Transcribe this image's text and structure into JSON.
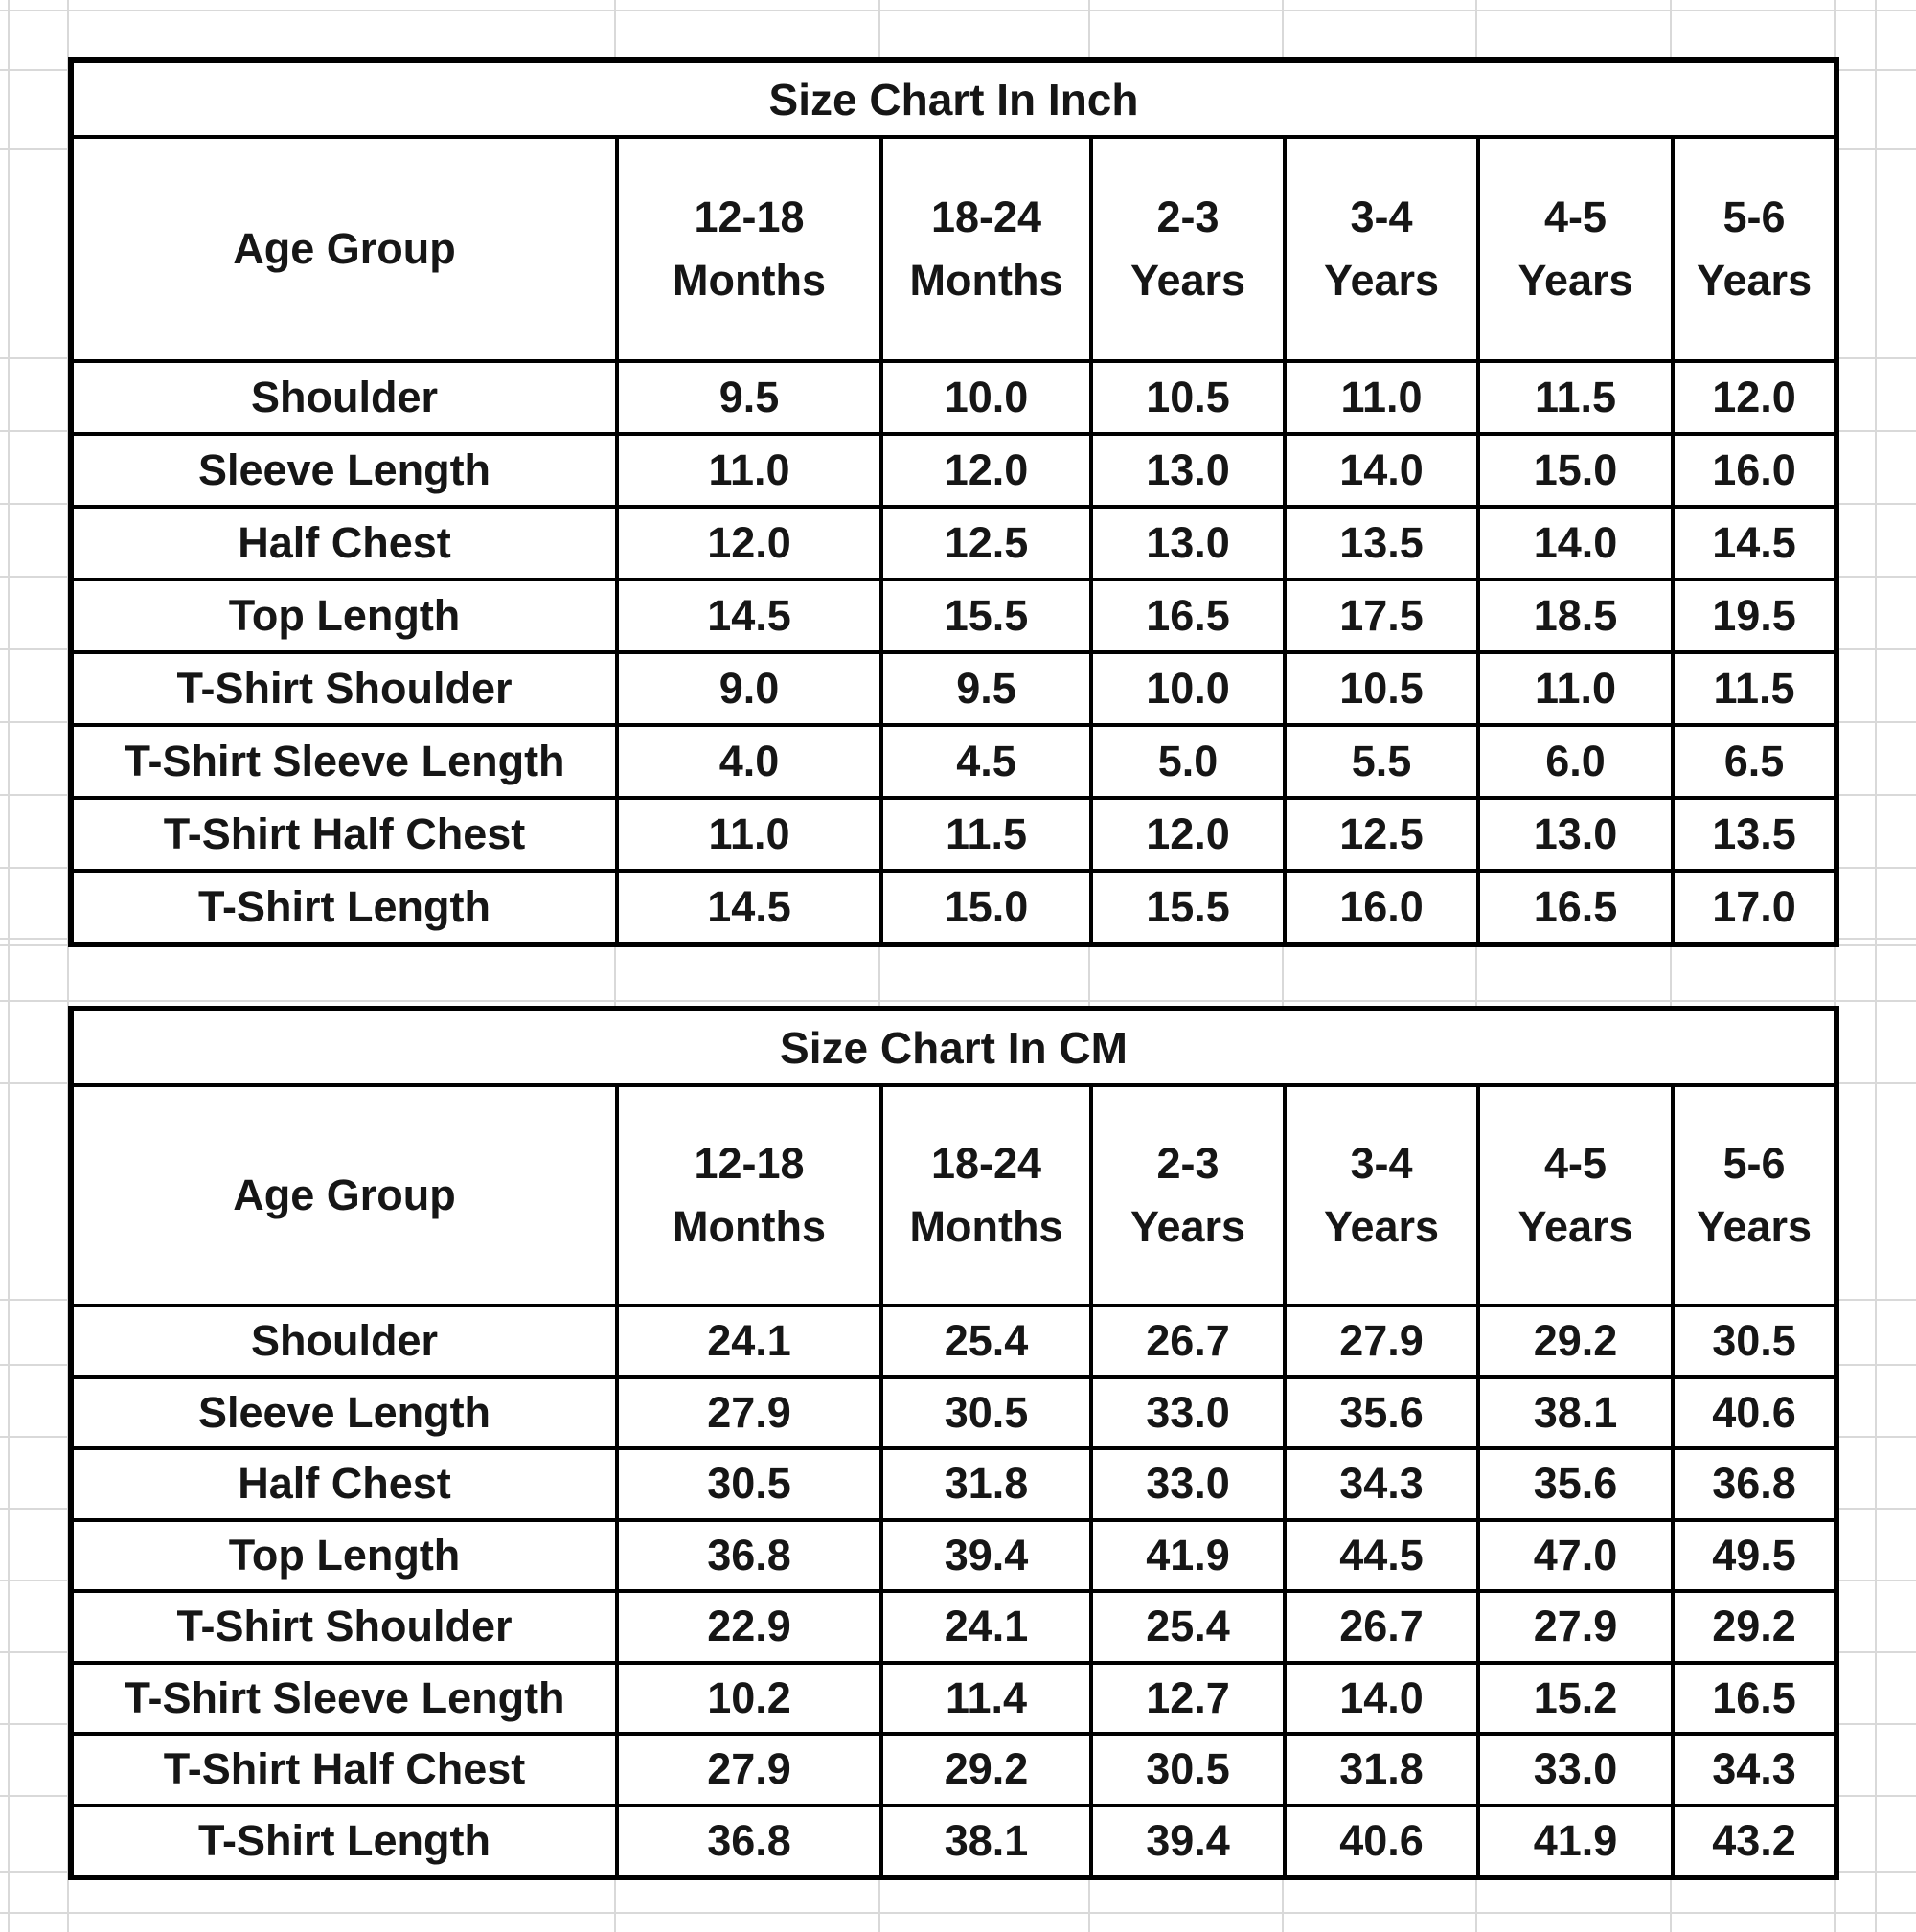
{
  "sheet": {
    "tables": [
      {
        "title": "Size Chart In Inch",
        "unit": "inch",
        "header": {
          "corner": "Age Group",
          "columns": [
            {
              "line1": "12-18",
              "line2": "Months"
            },
            {
              "line1": "18-24",
              "line2": "Months"
            },
            {
              "line1": "2-3",
              "line2": "Years"
            },
            {
              "line1": "3-4",
              "line2": "Years"
            },
            {
              "line1": "4-5",
              "line2": "Years"
            },
            {
              "line1": "5-6",
              "line2": "Years"
            }
          ]
        },
        "rows": [
          {
            "label": "Shoulder",
            "values": [
              "9.5",
              "10.0",
              "10.5",
              "11.0",
              "11.5",
              "12.0"
            ]
          },
          {
            "label": "Sleeve Length",
            "values": [
              "11.0",
              "12.0",
              "13.0",
              "14.0",
              "15.0",
              "16.0"
            ]
          },
          {
            "label": "Half Chest",
            "values": [
              "12.0",
              "12.5",
              "13.0",
              "13.5",
              "14.0",
              "14.5"
            ]
          },
          {
            "label": "Top Length",
            "values": [
              "14.5",
              "15.5",
              "16.5",
              "17.5",
              "18.5",
              "19.5"
            ]
          },
          {
            "label": "T-Shirt Shoulder",
            "values": [
              "9.0",
              "9.5",
              "10.0",
              "10.5",
              "11.0",
              "11.5"
            ]
          },
          {
            "label": "T-Shirt Sleeve Length",
            "values": [
              "4.0",
              "4.5",
              "5.0",
              "5.5",
              "6.0",
              "6.5"
            ]
          },
          {
            "label": "T-Shirt Half Chest",
            "values": [
              "11.0",
              "11.5",
              "12.0",
              "12.5",
              "13.0",
              "13.5"
            ]
          },
          {
            "label": "T-Shirt Length",
            "values": [
              "14.5",
              "15.0",
              "15.5",
              "16.0",
              "16.5",
              "17.0"
            ]
          }
        ]
      },
      {
        "title": "Size Chart In CM",
        "unit": "cm",
        "header": {
          "corner": "Age Group",
          "columns": [
            {
              "line1": "12-18",
              "line2": "Months"
            },
            {
              "line1": "18-24",
              "line2": "Months"
            },
            {
              "line1": "2-3",
              "line2": "Years"
            },
            {
              "line1": "3-4",
              "line2": "Years"
            },
            {
              "line1": "4-5",
              "line2": "Years"
            },
            {
              "line1": "5-6",
              "line2": "Years"
            }
          ]
        },
        "rows": [
          {
            "label": "Shoulder",
            "values": [
              "24.1",
              "25.4",
              "26.7",
              "27.9",
              "29.2",
              "30.5"
            ]
          },
          {
            "label": "Sleeve Length",
            "values": [
              "27.9",
              "30.5",
              "33.0",
              "35.6",
              "38.1",
              "40.6"
            ]
          },
          {
            "label": "Half Chest",
            "values": [
              "30.5",
              "31.8",
              "33.0",
              "34.3",
              "35.6",
              "36.8"
            ]
          },
          {
            "label": "Top Length",
            "values": [
              "36.8",
              "39.4",
              "41.9",
              "44.5",
              "47.0",
              "49.5"
            ]
          },
          {
            "label": "T-Shirt Shoulder",
            "values": [
              "22.9",
              "24.1",
              "25.4",
              "26.7",
              "27.9",
              "29.2"
            ]
          },
          {
            "label": "T-Shirt Sleeve Length",
            "values": [
              "10.2",
              "11.4",
              "12.7",
              "14.0",
              "15.2",
              "16.5"
            ]
          },
          {
            "label": "T-Shirt Half Chest",
            "values": [
              "27.9",
              "29.2",
              "30.5",
              "31.8",
              "33.0",
              "34.3"
            ]
          },
          {
            "label": "T-Shirt Length",
            "values": [
              "36.8",
              "38.1",
              "39.4",
              "40.6",
              "41.9",
              "43.2"
            ]
          }
        ]
      }
    ]
  },
  "colors": {
    "background": "#ffffff",
    "grid_line": "#d9d9d9",
    "table_border": "#000000",
    "text": "#161616"
  }
}
